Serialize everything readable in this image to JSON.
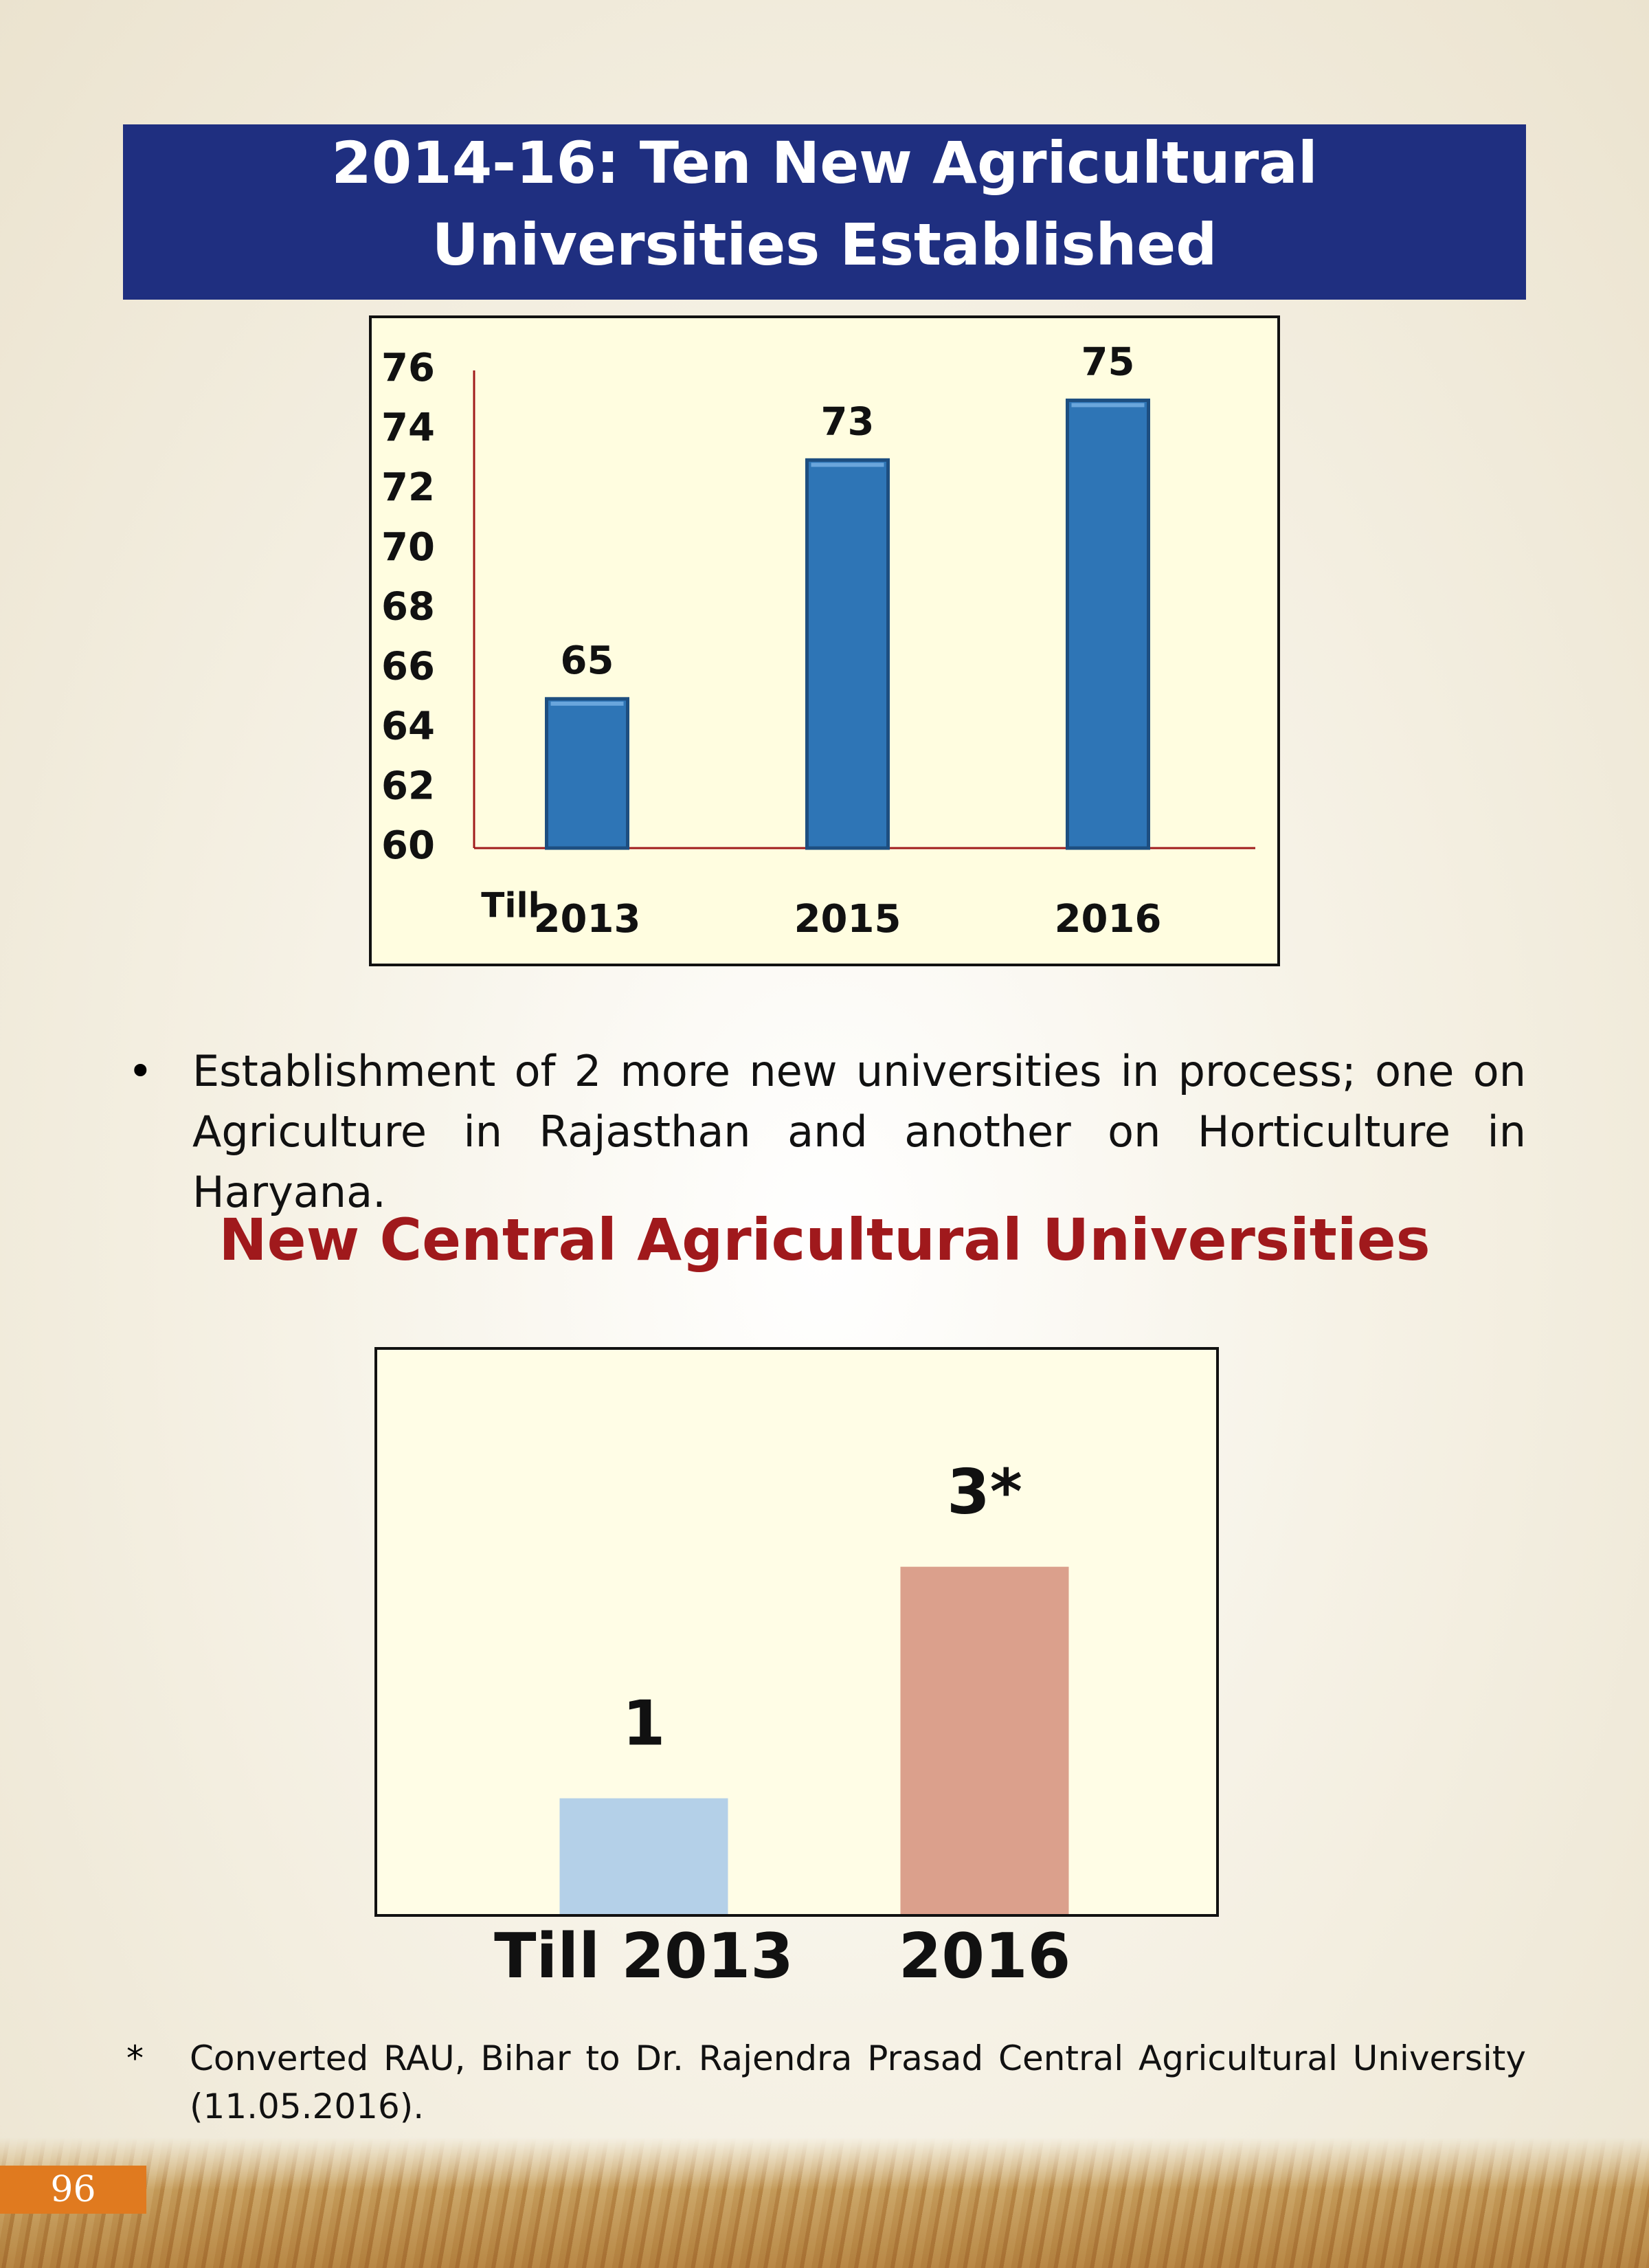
{
  "header": {
    "title_lines": [
      "2014-16: Ten New Agricultural",
      "Universities Established"
    ]
  },
  "chart_data": [
    {
      "type": "bar",
      "categories": [
        "2013",
        "2015",
        "2016"
      ],
      "category_prefix": "Till",
      "values": [
        65,
        73,
        75
      ],
      "color": "#2e75b6",
      "ylim": [
        60,
        76
      ],
      "yticks": [
        60,
        62,
        64,
        66,
        68,
        70,
        72,
        74,
        76
      ]
    },
    {
      "type": "bar",
      "categories": [
        "Till 2013",
        "2016"
      ],
      "values": [
        1,
        3
      ],
      "value_labels": [
        "1",
        "3*"
      ],
      "colors": [
        "#b4d0e8",
        "#dba08c"
      ]
    }
  ],
  "bullet": "Establishment of 2 more new universities in process; one on Agriculture in  Rajasthan and another on Horticulture in Haryana.",
  "section_title": "New Central Agricultural Universities",
  "footnote": {
    "marker": "*",
    "text": "Converted RAU, Bihar to Dr. Rajendra Prasad Central Agricultural University (11.05.2016)."
  },
  "page_number": "96"
}
